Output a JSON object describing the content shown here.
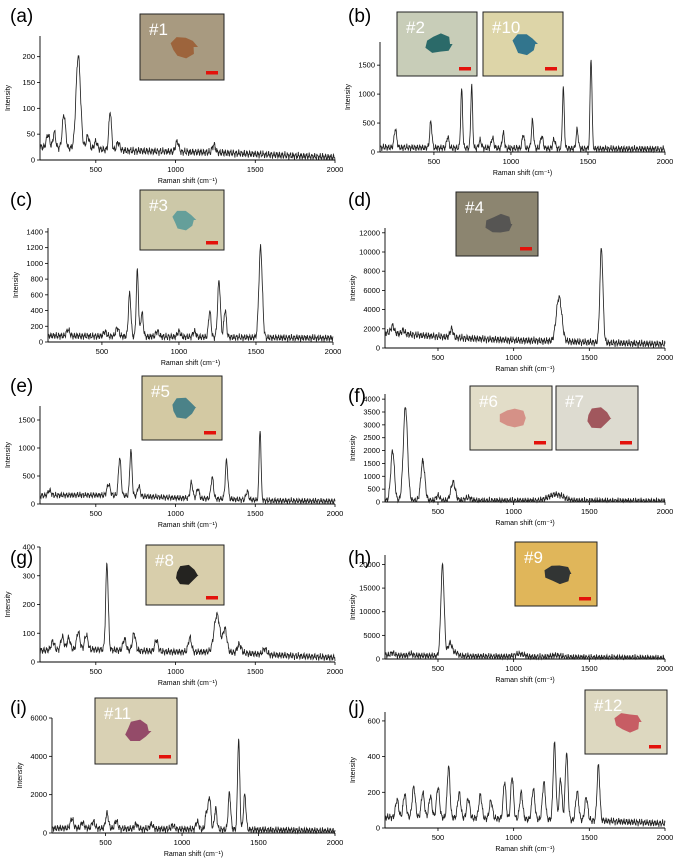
{
  "chart_data": [
    {
      "panel": "(a)",
      "type": "line",
      "xlabel": "Raman shift (cm⁻¹)",
      "ylabel": "Intensity",
      "xlim": [
        150,
        2000
      ],
      "ylim": [
        0,
        240
      ],
      "xticks": [
        500,
        1000,
        1500,
        2000
      ],
      "yticks": [
        0,
        50,
        100,
        150,
        200
      ],
      "baseline": [
        [
          150,
          25
        ],
        [
          400,
          22
        ],
        [
          700,
          18
        ],
        [
          1000,
          16
        ],
        [
          1300,
          14
        ],
        [
          1600,
          10
        ],
        [
          2000,
          5
        ]
      ],
      "peaks": [
        [
          200,
          25,
          10
        ],
        [
          240,
          30,
          8
        ],
        [
          300,
          65,
          10
        ],
        [
          390,
          180,
          14
        ],
        [
          450,
          25,
          10
        ],
        [
          500,
          15,
          10
        ],
        [
          590,
          75,
          8
        ],
        [
          640,
          15,
          10
        ],
        [
          1010,
          20,
          10
        ],
        [
          1240,
          15,
          10
        ]
      ],
      "insets": [
        {
          "label": "#1",
          "bg": "#a89a80",
          "blob": "#9b5e34"
        }
      ]
    },
    {
      "panel": "(b)",
      "type": "line",
      "xlabel": "Raman shift (cm⁻¹)",
      "ylabel": "Intensity",
      "xlim": [
        150,
        2000
      ],
      "ylim": [
        0,
        1900
      ],
      "xticks": [
        500,
        1000,
        1500,
        2000
      ],
      "yticks": [
        0,
        500,
        1000,
        1500
      ],
      "baseline": [
        [
          150,
          80
        ],
        [
          400,
          75
        ],
        [
          700,
          70
        ],
        [
          1000,
          65
        ],
        [
          1300,
          60
        ],
        [
          1600,
          55
        ],
        [
          2000,
          50
        ]
      ],
      "peaks": [
        [
          250,
          320,
          8
        ],
        [
          480,
          450,
          7
        ],
        [
          590,
          200,
          7
        ],
        [
          680,
          1000,
          6
        ],
        [
          745,
          1080,
          6
        ],
        [
          800,
          130,
          8
        ],
        [
          880,
          180,
          8
        ],
        [
          950,
          260,
          7
        ],
        [
          1080,
          240,
          7
        ],
        [
          1140,
          480,
          7
        ],
        [
          1200,
          220,
          8
        ],
        [
          1280,
          160,
          8
        ],
        [
          1340,
          1050,
          6
        ],
        [
          1430,
          330,
          7
        ],
        [
          1520,
          1560,
          6
        ]
      ],
      "insets": [
        {
          "label": "#2",
          "bg": "#c8cdb8",
          "blob": "#1a5f60"
        },
        {
          "label": "#10",
          "bg": "#ddd5a8",
          "blob": "#1f6a8a"
        }
      ]
    },
    {
      "panel": "(c)",
      "type": "line",
      "xlabel": "Raman shift (cm⁻¹)",
      "ylabel": "Intensity",
      "xlim": [
        150,
        2000
      ],
      "ylim": [
        0,
        1450
      ],
      "xticks": [
        500,
        1000,
        1500,
        2000
      ],
      "yticks": [
        0,
        200,
        400,
        600,
        800,
        1000,
        1200,
        1400
      ],
      "baseline": [
        [
          150,
          80
        ],
        [
          400,
          75
        ],
        [
          700,
          70
        ],
        [
          1000,
          65
        ],
        [
          1300,
          60
        ],
        [
          1600,
          55
        ],
        [
          2000,
          50
        ]
      ],
      "peaks": [
        [
          280,
          80,
          10
        ],
        [
          520,
          60,
          10
        ],
        [
          600,
          110,
          10
        ],
        [
          680,
          540,
          8
        ],
        [
          730,
          830,
          7
        ],
        [
          760,
          300,
          8
        ],
        [
          860,
          70,
          10
        ],
        [
          1000,
          70,
          10
        ],
        [
          1100,
          70,
          10
        ],
        [
          1200,
          330,
          8
        ],
        [
          1260,
          720,
          9
        ],
        [
          1300,
          350,
          8
        ],
        [
          1530,
          1150,
          11
        ]
      ],
      "insets": [
        {
          "label": "#3",
          "bg": "#ccc8a8",
          "blob": "#5a9a98"
        }
      ]
    },
    {
      "panel": "(d)",
      "type": "line",
      "xlabel": "Raman shift (cm⁻¹)",
      "ylabel": "Intensity",
      "xlim": [
        150,
        2000
      ],
      "ylim": [
        0,
        12500
      ],
      "xticks": [
        500,
        1000,
        1500,
        2000
      ],
      "yticks": [
        0,
        2000,
        4000,
        6000,
        8000,
        10000,
        12000
      ],
      "baseline": [
        [
          150,
          1600
        ],
        [
          400,
          1300
        ],
        [
          700,
          1000
        ],
        [
          1000,
          800
        ],
        [
          1300,
          700
        ],
        [
          1600,
          550
        ],
        [
          2000,
          400
        ]
      ],
      "peaks": [
        [
          200,
          800,
          10
        ],
        [
          270,
          400,
          10
        ],
        [
          590,
          900,
          10
        ],
        [
          1300,
          4600,
          18
        ],
        [
          1580,
          9900,
          10
        ]
      ],
      "insets": [
        {
          "label": "#4",
          "bg": "#8c8570",
          "blob": "#505050"
        }
      ]
    },
    {
      "panel": "(e)",
      "type": "line",
      "xlabel": "Raman shift (cm⁻¹)",
      "ylabel": "Intensity",
      "xlim": [
        150,
        2000
      ],
      "ylim": [
        0,
        1750
      ],
      "xticks": [
        500,
        1000,
        1500,
        2000
      ],
      "yticks": [
        0,
        500,
        1000,
        1500
      ],
      "baseline": [
        [
          150,
          150
        ],
        [
          400,
          160
        ],
        [
          700,
          150
        ],
        [
          1000,
          110
        ],
        [
          1300,
          90
        ],
        [
          1600,
          60
        ],
        [
          2000,
          50
        ]
      ],
      "peaks": [
        [
          210,
          90,
          10
        ],
        [
          580,
          200,
          10
        ],
        [
          650,
          680,
          8
        ],
        [
          720,
          820,
          7
        ],
        [
          770,
          180,
          8
        ],
        [
          1100,
          280,
          8
        ],
        [
          1140,
          180,
          8
        ],
        [
          1230,
          380,
          8
        ],
        [
          1320,
          680,
          8
        ],
        [
          1450,
          150,
          8
        ],
        [
          1530,
          1270,
          6
        ]
      ],
      "insets": [
        {
          "label": "#5",
          "bg": "#d3c9a3",
          "blob": "#3c7a85"
        }
      ]
    },
    {
      "panel": "(f)",
      "type": "line",
      "xlabel": "Raman shift (cm⁻¹)",
      "ylabel": "Intensity",
      "xlim": [
        150,
        2000
      ],
      "ylim": [
        0,
        4200
      ],
      "xticks": [
        500,
        1000,
        1500,
        2000
      ],
      "yticks": [
        0,
        500,
        1000,
        1500,
        2000,
        2500,
        3000,
        3500,
        4000
      ],
      "baseline": [
        [
          150,
          60
        ],
        [
          400,
          55
        ],
        [
          700,
          50
        ],
        [
          1000,
          50
        ],
        [
          1300,
          45
        ],
        [
          1600,
          40
        ],
        [
          2000,
          30
        ]
      ],
      "peaks": [
        [
          200,
          1950,
          12
        ],
        [
          285,
          3650,
          14
        ],
        [
          400,
          1550,
          13
        ],
        [
          500,
          200,
          12
        ],
        [
          600,
          720,
          15
        ],
        [
          700,
          120,
          20
        ],
        [
          1280,
          250,
          50
        ]
      ],
      "insets": [
        {
          "label": "#6",
          "bg": "#e2ddc8",
          "blob": "#d48880"
        },
        {
          "label": "#7",
          "bg": "#dddbd0",
          "blob": "#9a4850"
        }
      ]
    },
    {
      "panel": "(g)",
      "type": "line",
      "xlabel": "Raman shift (cm⁻¹)",
      "ylabel": "Intensity",
      "xlim": [
        150,
        2000
      ],
      "ylim": [
        0,
        400
      ],
      "xticks": [
        500,
        1000,
        1500,
        2000
      ],
      "yticks": [
        0,
        100,
        200,
        300,
        400
      ],
      "baseline": [
        [
          150,
          40
        ],
        [
          400,
          45
        ],
        [
          700,
          40
        ],
        [
          1000,
          35
        ],
        [
          1300,
          35
        ],
        [
          1600,
          25
        ],
        [
          2000,
          15
        ]
      ],
      "peaks": [
        [
          230,
          30,
          10
        ],
        [
          290,
          45,
          10
        ],
        [
          330,
          40,
          10
        ],
        [
          390,
          60,
          10
        ],
        [
          440,
          50,
          10
        ],
        [
          570,
          300,
          8
        ],
        [
          680,
          40,
          10
        ],
        [
          740,
          60,
          10
        ],
        [
          880,
          40,
          10
        ],
        [
          1090,
          50,
          10
        ],
        [
          1260,
          130,
          18
        ],
        [
          1310,
          80,
          12
        ],
        [
          1400,
          30,
          12
        ],
        [
          1560,
          20,
          12
        ]
      ],
      "insets": [
        {
          "label": "#8",
          "bg": "#d8ceab",
          "blob": "#111111"
        }
      ]
    },
    {
      "panel": "(h)",
      "type": "line",
      "xlabel": "Raman shift (cm⁻¹)",
      "ylabel": "Intensity",
      "xlim": [
        150,
        2000
      ],
      "ylim": [
        0,
        22000
      ],
      "xticks": [
        500,
        1000,
        1500,
        2000
      ],
      "yticks": [
        0,
        5000,
        10000,
        15000,
        20000
      ],
      "baseline": [
        [
          150,
          800
        ],
        [
          400,
          700
        ],
        [
          700,
          600
        ],
        [
          1000,
          500
        ],
        [
          1300,
          400
        ],
        [
          1600,
          300
        ],
        [
          2000,
          200
        ]
      ],
      "peaks": [
        [
          200,
          500,
          12
        ],
        [
          320,
          400,
          12
        ],
        [
          530,
          19200,
          11
        ],
        [
          580,
          2800,
          14
        ],
        [
          620,
          700,
          14
        ],
        [
          1040,
          600,
          30
        ],
        [
          1280,
          400,
          30
        ]
      ],
      "insets": [
        {
          "label": "#9",
          "bg": "#e0b65a",
          "blob": "#1f2730"
        }
      ]
    },
    {
      "panel": "(i)",
      "type": "line",
      "xlabel": "Raman shift (cm⁻¹)",
      "ylabel": "Intensity",
      "xlim": [
        150,
        2000
      ],
      "ylim": [
        0,
        6000
      ],
      "xticks": [
        500,
        1000,
        1500,
        2000
      ],
      "yticks": [
        0,
        2000,
        4000,
        6000
      ],
      "baseline": [
        [
          150,
          250
        ],
        [
          400,
          250
        ],
        [
          700,
          220
        ],
        [
          1000,
          200
        ],
        [
          1300,
          180
        ],
        [
          1600,
          150
        ],
        [
          2000,
          100
        ]
      ],
      "peaks": [
        [
          280,
          500,
          10
        ],
        [
          350,
          300,
          10
        ],
        [
          420,
          350,
          10
        ],
        [
          510,
          800,
          9
        ],
        [
          570,
          400,
          10
        ],
        [
          700,
          250,
          10
        ],
        [
          800,
          250,
          10
        ],
        [
          940,
          200,
          10
        ],
        [
          1100,
          400,
          10
        ],
        [
          1160,
          900,
          8
        ],
        [
          1180,
          1700,
          8
        ],
        [
          1220,
          1100,
          8
        ],
        [
          1310,
          1900,
          8
        ],
        [
          1370,
          4750,
          7
        ],
        [
          1410,
          1800,
          8
        ]
      ],
      "insets": [
        {
          "label": "#11",
          "bg": "#d9d1b4",
          "blob": "#8c3c60"
        }
      ]
    },
    {
      "panel": "(j)",
      "type": "line",
      "xlabel": "Raman shift (cm⁻¹)",
      "ylabel": "Intensity",
      "xlim": [
        150,
        2000
      ],
      "ylim": [
        0,
        650
      ],
      "xticks": [
        500,
        1000,
        1500,
        2000
      ],
      "yticks": [
        0,
        200,
        400,
        600
      ],
      "baseline": [
        [
          150,
          60
        ],
        [
          400,
          60
        ],
        [
          700,
          55
        ],
        [
          1000,
          50
        ],
        [
          1300,
          45
        ],
        [
          1600,
          40
        ],
        [
          2000,
          25
        ]
      ],
      "peaks": [
        [
          230,
          100,
          10
        ],
        [
          280,
          130,
          10
        ],
        [
          340,
          170,
          10
        ],
        [
          400,
          140,
          10
        ],
        [
          450,
          120,
          10
        ],
        [
          500,
          170,
          10
        ],
        [
          570,
          290,
          9
        ],
        [
          640,
          140,
          10
        ],
        [
          700,
          110,
          10
        ],
        [
          780,
          130,
          10
        ],
        [
          850,
          100,
          10
        ],
        [
          940,
          210,
          9
        ],
        [
          990,
          240,
          9
        ],
        [
          1050,
          150,
          10
        ],
        [
          1130,
          170,
          10
        ],
        [
          1200,
          210,
          10
        ],
        [
          1270,
          430,
          9
        ],
        [
          1310,
          230,
          9
        ],
        [
          1350,
          380,
          9
        ],
        [
          1420,
          160,
          10
        ],
        [
          1480,
          130,
          10
        ],
        [
          1560,
          310,
          9
        ]
      ],
      "insets": [
        {
          "label": "#12",
          "bg": "#ddd8c0",
          "blob": "#c4505a"
        }
      ]
    }
  ]
}
